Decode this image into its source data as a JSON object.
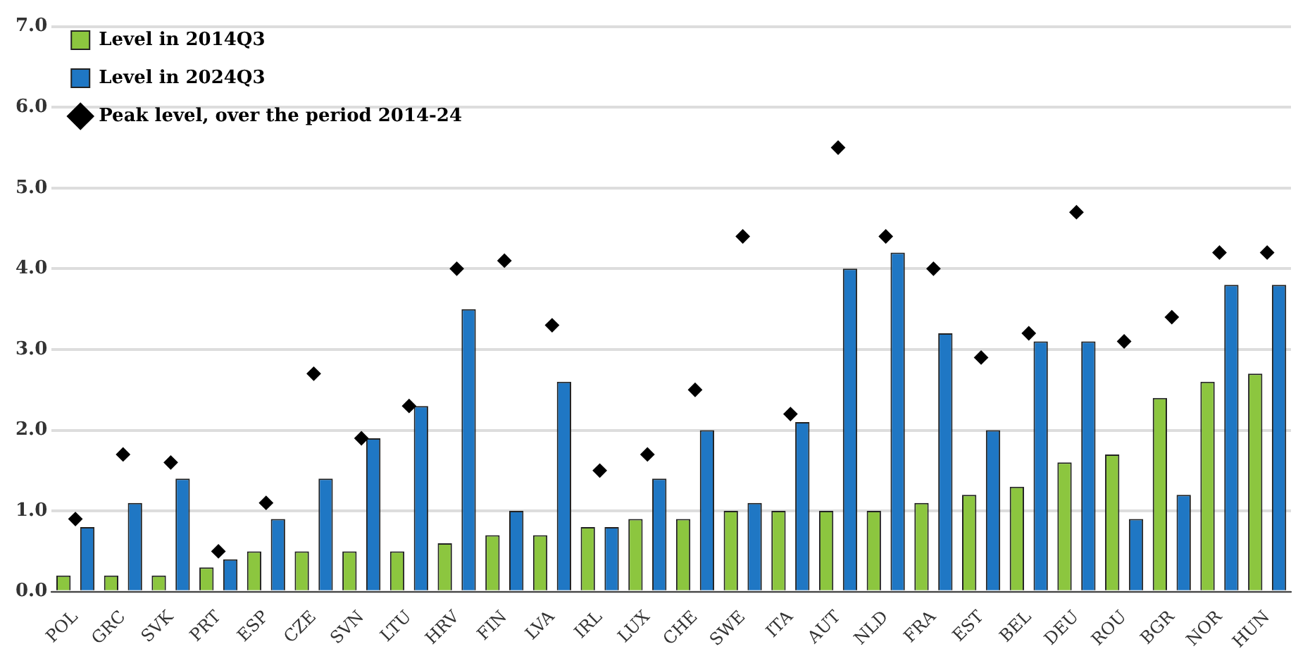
{
  "chart_data": {
    "type": "bar",
    "categories": [
      "POL",
      "GRC",
      "SVK",
      "PRT",
      "ESP",
      "CZE",
      "SVN",
      "LTU",
      "HRV",
      "FIN",
      "LVA",
      "IRL",
      "LUX",
      "CHE",
      "SWE",
      "ITA",
      "AUT",
      "NLD",
      "FRA",
      "EST",
      "BEL",
      "DEU",
      "ROU",
      "BGR",
      "NOR",
      "HUN"
    ],
    "series": [
      {
        "name": "Level in 2014Q3",
        "color": "#8cc63f",
        "values": [
          0.2,
          0.2,
          0.2,
          0.3,
          0.5,
          0.5,
          0.5,
          0.5,
          0.6,
          0.7,
          0.7,
          0.8,
          0.9,
          0.9,
          1.0,
          1.0,
          1.0,
          1.0,
          1.1,
          1.2,
          1.3,
          1.6,
          1.7,
          2.4,
          2.6,
          2.7
        ]
      },
      {
        "name": "Level in 2024Q3",
        "color": "#1f77c4",
        "values": [
          0.8,
          1.1,
          1.4,
          0.4,
          0.9,
          1.4,
          1.9,
          2.3,
          3.5,
          1.0,
          2.6,
          0.8,
          1.4,
          2.0,
          1.1,
          2.1,
          4.0,
          4.2,
          3.2,
          2.0,
          3.1,
          3.1,
          0.9,
          1.2,
          3.8,
          3.8
        ]
      },
      {
        "name": "Peak level, over the period 2014-24",
        "type": "scatter",
        "marker": "diamond",
        "color": "#000000",
        "values": [
          0.9,
          1.7,
          1.6,
          0.5,
          1.1,
          2.7,
          1.9,
          2.3,
          4.0,
          4.1,
          3.3,
          1.5,
          1.7,
          2.5,
          4.4,
          2.2,
          5.5,
          4.4,
          4.0,
          2.9,
          3.2,
          4.7,
          3.1,
          3.4,
          4.2,
          4.2
        ]
      }
    ],
    "ylim": [
      0,
      7
    ],
    "yticks": [
      {
        "value": 0,
        "label": "0.0"
      },
      {
        "value": 1,
        "label": "1.0"
      },
      {
        "value": 2,
        "label": "2.0"
      },
      {
        "value": 3,
        "label": "3.0"
      },
      {
        "value": 4,
        "label": "4.0"
      },
      {
        "value": 5,
        "label": "5.0"
      },
      {
        "value": 6,
        "label": "6.0"
      },
      {
        "value": 7,
        "label": "7.0"
      }
    ],
    "grid": "y",
    "legend": "top left"
  }
}
